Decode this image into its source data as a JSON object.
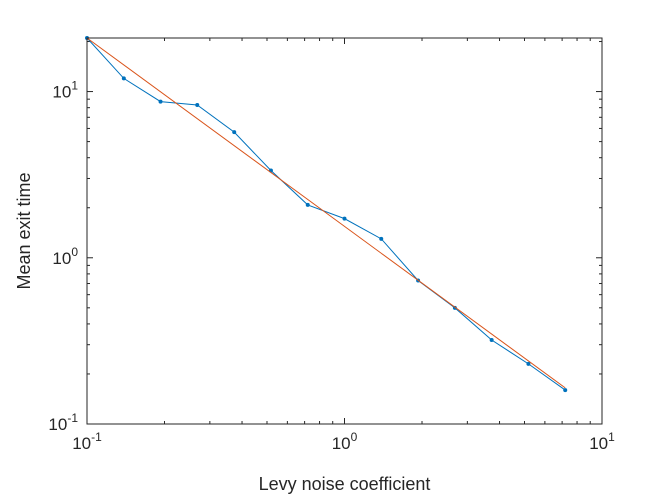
{
  "chart_data": {
    "type": "line",
    "xscale": "log",
    "yscale": "log",
    "xlabel": "Levy noise coefficient",
    "ylabel": "Mean exit time",
    "xlim": [
      0.1,
      10
    ],
    "ylim": [
      0.1,
      21
    ],
    "grid": false,
    "box": true,
    "x_ticks": [
      {
        "value": 0.1,
        "base": "10",
        "exp": "-1"
      },
      {
        "value": 1,
        "base": "10",
        "exp": "0"
      },
      {
        "value": 10,
        "base": "10",
        "exp": "1"
      }
    ],
    "y_ticks": [
      {
        "value": 0.1,
        "base": "10",
        "exp": "-1"
      },
      {
        "value": 1,
        "base": "10",
        "exp": "0"
      },
      {
        "value": 10,
        "base": "10",
        "exp": "1"
      }
    ],
    "series": [
      {
        "color": "#0072BD",
        "marker": "point",
        "x": [
          0.1,
          0.139,
          0.193,
          0.268,
          0.373,
          0.518,
          0.72,
          1.0,
          1.389,
          1.931,
          2.683,
          3.728,
          5.179,
          7.197
        ],
        "y": [
          21.0,
          12.0,
          8.7,
          8.3,
          5.7,
          3.35,
          2.08,
          1.72,
          1.3,
          0.73,
          0.5,
          0.32,
          0.23,
          0.16
        ]
      },
      {
        "color": "#D95319",
        "marker": "none",
        "x": [
          0.1,
          7.197
        ],
        "y": [
          21.0,
          0.165
        ]
      }
    ]
  }
}
